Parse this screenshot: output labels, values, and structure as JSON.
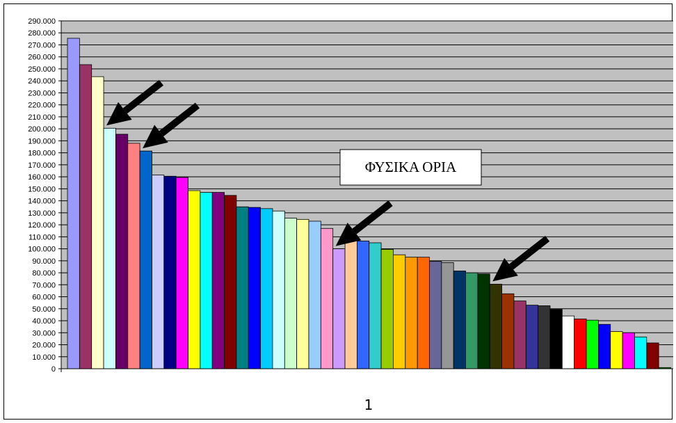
{
  "chart_data": {
    "type": "bar",
    "categories": [
      "1"
    ],
    "ylim": [
      0,
      290000
    ],
    "y_tick_step": 10000,
    "y_tick_labels": [
      "0",
      "10.000",
      "20.000",
      "30.000",
      "40.000",
      "50.000",
      "60.000",
      "70.000",
      "80.000",
      "90.000",
      "100.000",
      "110.000",
      "120.000",
      "130.000",
      "140.000",
      "150.000",
      "160.000",
      "170.000",
      "180.000",
      "190.000",
      "200.000",
      "210.000",
      "220.000",
      "230.000",
      "240.000",
      "250.000",
      "260.000",
      "270.000",
      "280.000",
      "290.000"
    ],
    "grid": true,
    "plot_background": "#c0c0c0",
    "annotation": {
      "text": "ΦΥΣΙΚΑ ΟΡΙΑ",
      "arrow_targets_bar_index": [
        3,
        6,
        22,
        35
      ]
    },
    "series": [
      {
        "values": [
          275500
        ],
        "color": "#9999ff"
      },
      {
        "values": [
          253500
        ],
        "color": "#993366"
      },
      {
        "values": [
          243500
        ],
        "color": "#ffffcc"
      },
      {
        "values": [
          200500
        ],
        "color": "#ccffff"
      },
      {
        "values": [
          195500
        ],
        "color": "#660066"
      },
      {
        "values": [
          188000
        ],
        "color": "#ff8080"
      },
      {
        "values": [
          181500
        ],
        "color": "#0066cc"
      },
      {
        "values": [
          161500
        ],
        "color": "#ccccff"
      },
      {
        "values": [
          160500
        ],
        "color": "#000080"
      },
      {
        "values": [
          159500
        ],
        "color": "#ff00ff"
      },
      {
        "values": [
          148500
        ],
        "color": "#ffff00"
      },
      {
        "values": [
          147000
        ],
        "color": "#00ffff"
      },
      {
        "values": [
          147000
        ],
        "color": "#800080"
      },
      {
        "values": [
          144500
        ],
        "color": "#800000"
      },
      {
        "values": [
          135000
        ],
        "color": "#008080"
      },
      {
        "values": [
          134500
        ],
        "color": "#0000ff"
      },
      {
        "values": [
          133500
        ],
        "color": "#00ccff"
      },
      {
        "values": [
          131500
        ],
        "color": "#ccffff"
      },
      {
        "values": [
          125500
        ],
        "color": "#ccffcc"
      },
      {
        "values": [
          124500
        ],
        "color": "#ffff99"
      },
      {
        "values": [
          123000
        ],
        "color": "#99ccff"
      },
      {
        "values": [
          117000
        ],
        "color": "#ff99cc"
      },
      {
        "values": [
          100000
        ],
        "color": "#cc99ff"
      },
      {
        "values": [
          108000
        ],
        "color": "#ffcc99"
      },
      {
        "values": [
          106500
        ],
        "color": "#3366ff"
      },
      {
        "values": [
          105000
        ],
        "color": "#33cccc"
      },
      {
        "values": [
          99500
        ],
        "color": "#99cc00"
      },
      {
        "values": [
          95000
        ],
        "color": "#ffcc00"
      },
      {
        "values": [
          93000
        ],
        "color": "#ff9900"
      },
      {
        "values": [
          93000
        ],
        "color": "#ff6600"
      },
      {
        "values": [
          89500
        ],
        "color": "#666699"
      },
      {
        "values": [
          88500
        ],
        "color": "#969696"
      },
      {
        "values": [
          81500
        ],
        "color": "#003366"
      },
      {
        "values": [
          80000
        ],
        "color": "#339966"
      },
      {
        "values": [
          79000
        ],
        "color": "#003300"
      },
      {
        "values": [
          70500
        ],
        "color": "#333300"
      },
      {
        "values": [
          62500
        ],
        "color": "#993300"
      },
      {
        "values": [
          56500
        ],
        "color": "#993366"
      },
      {
        "values": [
          53000
        ],
        "color": "#333399"
      },
      {
        "values": [
          52500
        ],
        "color": "#333333"
      },
      {
        "values": [
          49500
        ],
        "color": "#000000"
      },
      {
        "values": [
          44000
        ],
        "color": "#ffffff"
      },
      {
        "values": [
          41500
        ],
        "color": "#ff0000"
      },
      {
        "values": [
          40500
        ],
        "color": "#00ff00"
      },
      {
        "values": [
          37000
        ],
        "color": "#0000ff"
      },
      {
        "values": [
          31000
        ],
        "color": "#ffff00"
      },
      {
        "values": [
          30000
        ],
        "color": "#ff00ff"
      },
      {
        "values": [
          26500
        ],
        "color": "#00ffff"
      },
      {
        "values": [
          21500
        ],
        "color": "#800000"
      },
      {
        "values": [
          1000
        ],
        "color": "#008000"
      }
    ]
  }
}
